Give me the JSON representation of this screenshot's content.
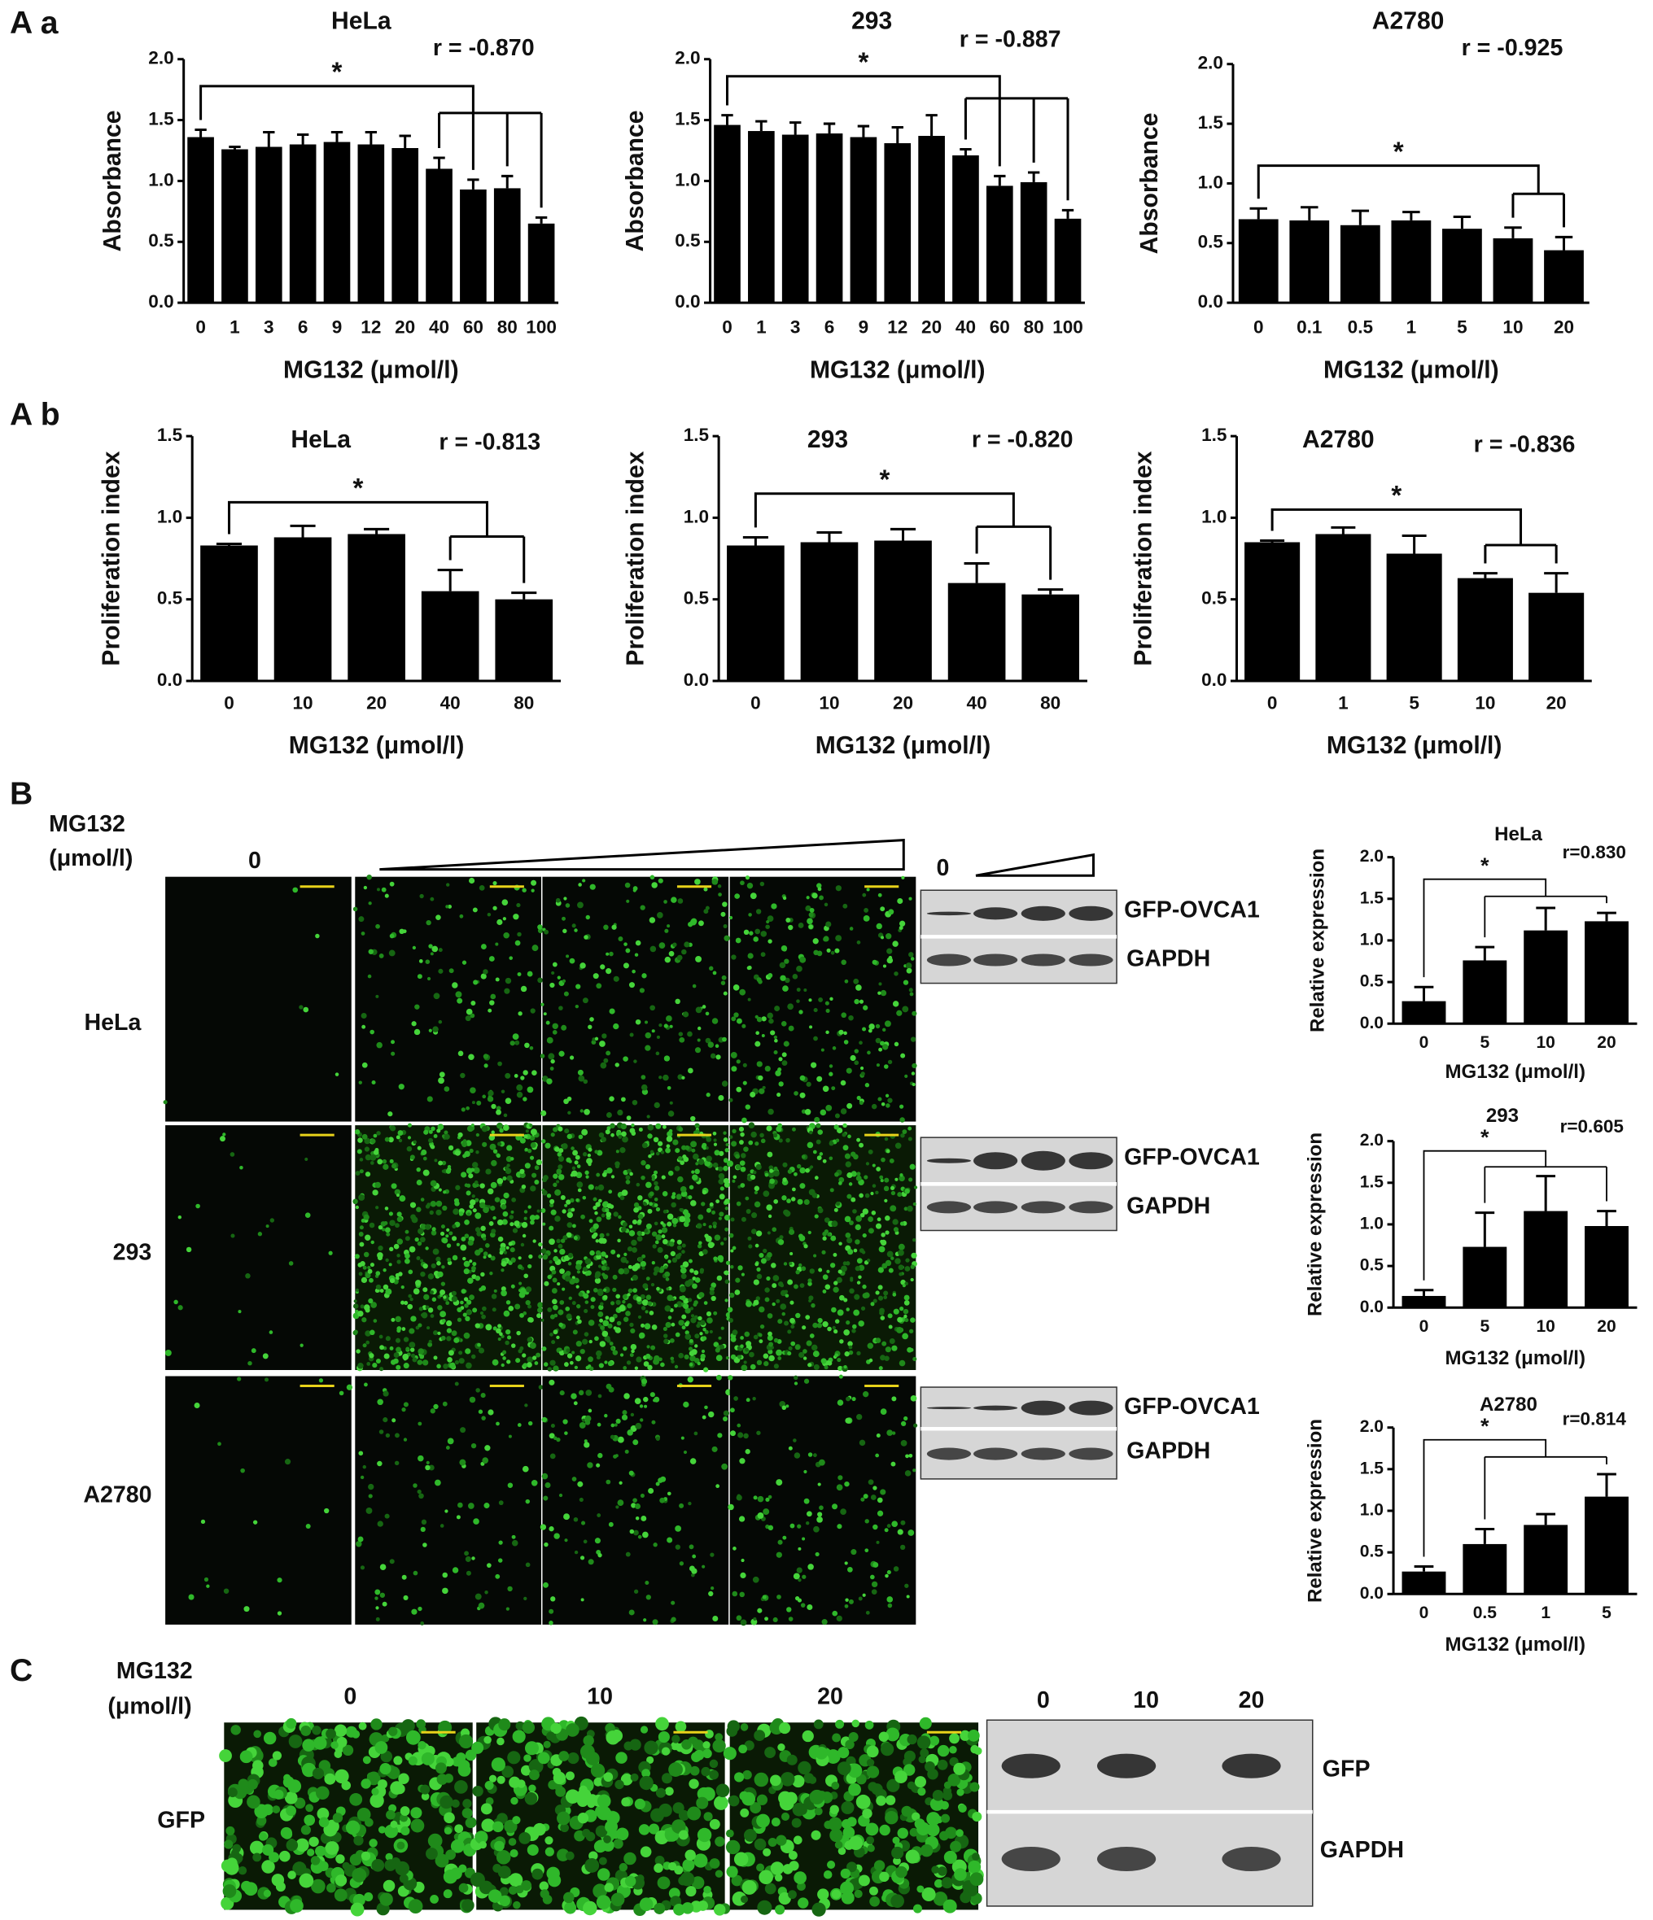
{
  "panels": {
    "Aa": "A a",
    "Ab": "A b",
    "B": "B",
    "C": "C"
  },
  "chart_data": [
    {
      "type": "bar",
      "title": "HeLa",
      "annotation": "r = -0.870",
      "significance": "*",
      "y_label": "Absorbance",
      "x_label": "MG132 (μmol/l)",
      "categories": [
        "0",
        "1",
        "3",
        "6",
        "9",
        "12",
        "20",
        "40",
        "60",
        "80",
        "100"
      ],
      "values": [
        1.36,
        1.26,
        1.28,
        1.3,
        1.32,
        1.3,
        1.27,
        1.1,
        0.93,
        0.94,
        0.65
      ],
      "errors": [
        0.06,
        0.02,
        0.12,
        0.08,
        0.08,
        0.1,
        0.1,
        0.09,
        0.08,
        0.1,
        0.05
      ],
      "color": "#000000",
      "ylim": [
        0,
        2
      ],
      "yticks": [
        {
          "value": 0,
          "label": "0.0"
        },
        0.5,
        {
          "value": 1,
          "label": "1.0"
        },
        1.5,
        {
          "value": 2,
          "label": "2.0"
        }
      ]
    },
    {
      "type": "bar",
      "title": "293",
      "annotation": "r = -0.887",
      "significance": "*",
      "y_label": "Absorbance",
      "x_label": "MG132 (μmol/l)",
      "categories": [
        "0",
        "1",
        "3",
        "6",
        "9",
        "12",
        "20",
        "40",
        "60",
        "80",
        "100"
      ],
      "values": [
        1.46,
        1.41,
        1.38,
        1.39,
        1.36,
        1.31,
        1.37,
        1.21,
        0.96,
        0.99,
        0.69
      ],
      "errors": [
        0.08,
        0.08,
        0.1,
        0.08,
        0.09,
        0.13,
        0.17,
        0.05,
        0.08,
        0.08,
        0.07
      ],
      "color": "#000000",
      "ylim": [
        0,
        2
      ],
      "yticks": [
        {
          "value": 0,
          "label": "0.0"
        },
        0.5,
        {
          "value": 1,
          "label": "1.0"
        },
        1.5,
        {
          "value": 2,
          "label": "2.0"
        }
      ]
    },
    {
      "type": "bar",
      "title": "A2780",
      "annotation": "r = -0.925",
      "significance": "*",
      "y_label": "Absorbance",
      "x_label": "MG132 (μmol/l)",
      "categories": [
        "0",
        "0.1",
        "0.5",
        "1",
        "5",
        "10",
        "20"
      ],
      "values": [
        0.7,
        0.69,
        0.65,
        0.69,
        0.62,
        0.54,
        0.44
      ],
      "errors": [
        0.09,
        0.11,
        0.12,
        0.07,
        0.1,
        0.09,
        0.11
      ],
      "color": "#000000",
      "ylim": [
        0,
        2
      ],
      "yticks": [
        {
          "value": 0,
          "label": "0.0"
        },
        0.5,
        {
          "value": 1,
          "label": "1.0"
        },
        1.5,
        {
          "value": 2,
          "label": "2.0"
        }
      ]
    },
    {
      "type": "bar",
      "title": "HeLa",
      "annotation": "r = -0.813",
      "significance": "*",
      "y_label": "Proliferation index",
      "x_label": "MG132 (μmol/l)",
      "categories": [
        "0",
        "10",
        "20",
        "40",
        "80"
      ],
      "values": [
        0.83,
        0.88,
        0.9,
        0.55,
        0.5
      ],
      "errors": [
        0.01,
        0.07,
        0.03,
        0.13,
        0.04
      ],
      "color": "#000000",
      "ylim": [
        0,
        1.5
      ],
      "yticks": [
        {
          "value": 0,
          "label": "0.0"
        },
        0.5,
        {
          "value": 1,
          "label": "1.0"
        },
        1.5
      ]
    },
    {
      "type": "bar",
      "title": "293",
      "annotation": "r = -0.820",
      "significance": "*",
      "y_label": "Proliferation index",
      "x_label": "MG132 (μmol/l)",
      "categories": [
        "0",
        "10",
        "20",
        "40",
        "80"
      ],
      "values": [
        0.83,
        0.85,
        0.86,
        0.6,
        0.53
      ],
      "errors": [
        0.05,
        0.06,
        0.07,
        0.12,
        0.03
      ],
      "color": "#000000",
      "ylim": [
        0,
        1.5
      ],
      "yticks": [
        {
          "value": 0,
          "label": "0.0"
        },
        0.5,
        {
          "value": 1,
          "label": "1.0"
        },
        1.5
      ]
    },
    {
      "type": "bar",
      "title": "A2780",
      "annotation": "r = -0.836",
      "significance": "*",
      "y_label": "Proliferation index",
      "x_label": "MG132 (μmol/l)",
      "categories": [
        "0",
        "1",
        "5",
        "10",
        "20"
      ],
      "values": [
        0.85,
        0.9,
        0.78,
        0.63,
        0.54
      ],
      "errors": [
        0.01,
        0.04,
        0.11,
        0.03,
        0.12
      ],
      "color": "#000000",
      "ylim": [
        0,
        1.5
      ],
      "yticks": [
        {
          "value": 0,
          "label": "0.0"
        },
        0.5,
        {
          "value": 1,
          "label": "1.0"
        },
        1.5
      ]
    },
    {
      "type": "bar",
      "title": "HeLa",
      "annotation": "r=0.830",
      "significance": "*",
      "y_label": "Relative expression",
      "x_label": "MG132 (μmol/l)",
      "categories": [
        "0",
        "5",
        "10",
        "20"
      ],
      "values": [
        0.27,
        0.76,
        1.12,
        1.23
      ],
      "errors": [
        0.17,
        0.16,
        0.27,
        0.1
      ],
      "color": "#000000",
      "ylim": [
        0,
        2
      ],
      "yticks": [
        {
          "value": 0,
          "label": "0.0"
        },
        0.5,
        {
          "value": 1,
          "label": "1.0"
        },
        1.5,
        {
          "value": 2,
          "label": "2.0"
        }
      ]
    },
    {
      "type": "bar",
      "title": "293",
      "annotation": "r=0.605",
      "significance": "*",
      "y_label": "Relative expression",
      "x_label": "MG132 (μmol/l)",
      "categories": [
        "0",
        "5",
        "10",
        "20"
      ],
      "values": [
        0.14,
        0.73,
        1.16,
        0.98
      ],
      "errors": [
        0.07,
        0.41,
        0.42,
        0.18
      ],
      "color": "#000000",
      "ylim": [
        0,
        2
      ],
      "yticks": [
        {
          "value": 0,
          "label": "0.0"
        },
        0.5,
        {
          "value": 1,
          "label": "1.0"
        },
        1.5,
        {
          "value": 2,
          "label": "2.0"
        }
      ]
    },
    {
      "type": "bar",
      "title": "A2780",
      "annotation": "r=0.814",
      "significance": "*",
      "y_label": "Relative expression",
      "x_label": "MG132 (μmol/l)",
      "categories": [
        "0",
        "0.5",
        "1",
        "5"
      ],
      "values": [
        0.27,
        0.6,
        0.83,
        1.17
      ],
      "errors": [
        0.06,
        0.18,
        0.13,
        0.27
      ],
      "color": "#000000",
      "ylim": [
        0,
        2
      ],
      "yticks": [
        {
          "value": 0,
          "label": "0.0"
        },
        0.5,
        {
          "value": 1,
          "label": "1.0"
        },
        1.5,
        {
          "value": 2,
          "label": "2.0"
        }
      ]
    }
  ],
  "panel_b": {
    "dose_label": [
      "MG132",
      "(μmol/l)"
    ],
    "first_dose": "0",
    "rows": [
      "HeLa",
      "293",
      "A2780"
    ],
    "blot_dose": "0",
    "blot_labels": [
      "GFP-OVCA1",
      "GAPDH"
    ]
  },
  "panel_c": {
    "dose_label": [
      "MG132",
      "(μmol/l)"
    ],
    "doses": [
      "0",
      "10",
      "20"
    ],
    "row": "GFP",
    "blot_doses": [
      "0",
      "10",
      "20"
    ],
    "blot_labels": [
      "GFP",
      "GAPDH"
    ]
  }
}
